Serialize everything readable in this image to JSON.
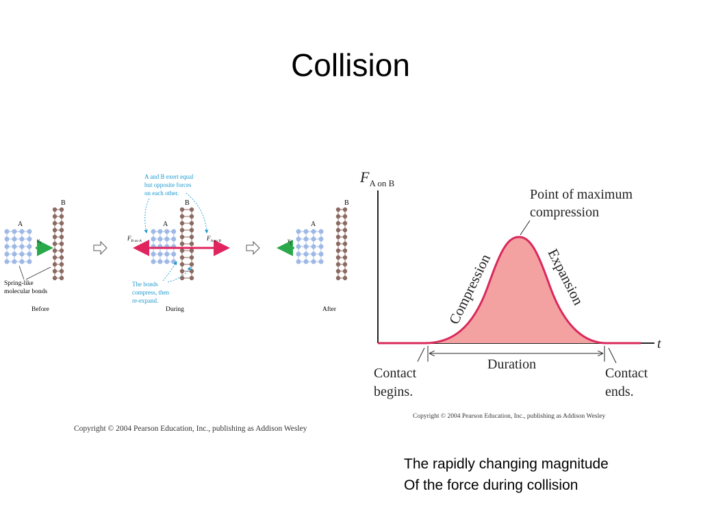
{
  "slide": {
    "title": "Collision",
    "caption_line1": "The rapidly changing magnitude",
    "caption_line2": "Of the force during collision"
  },
  "left_figure": {
    "label_a_before": "A",
    "label_b_before": "B",
    "velocity_before": "v",
    "velocity_before_sub": "i",
    "springs_line1": "Spring-like",
    "springs_line2": "molecular bonds",
    "stage_before": "Before",
    "note_top_line1": "A and B exert equal",
    "note_top_line2": "but opposite forces",
    "note_top_line3": "on each other.",
    "label_a_during": "A",
    "label_b_during": "B",
    "force_left": "F",
    "force_left_sub": "B on A",
    "force_right": "F",
    "force_right_sub": "A on B",
    "note_bottom_line1": "The bonds",
    "note_bottom_line2": "compress, then",
    "note_bottom_line3": "re-expand.",
    "stage_during": "During",
    "label_a_after": "A",
    "label_b_after": "B",
    "velocity_after": "v",
    "velocity_after_sub": "f",
    "stage_after": "After",
    "copyright": "Copyright © 2004 Pearson Education, Inc., publishing as Addison Wesley",
    "colors": {
      "atom_a": "#9fb9e6",
      "atom_b": "#8a6a62",
      "force": "#e0245e",
      "velocity": "#2aa84a",
      "note": "#1a9ad0"
    }
  },
  "right_figure": {
    "y_axis_label": "F",
    "y_axis_sub": "A on B",
    "x_axis_label": "t",
    "peak_label_line1": "Point of maximum",
    "peak_label_line2": "compression",
    "phase_rise": "Compression",
    "phase_fall": "Expansion",
    "duration_label": "Duration",
    "contact_begin_line1": "Contact",
    "contact_begin_line2": "begins.",
    "contact_end_line1": "Contact",
    "contact_end_line2": "ends.",
    "copyright": "Copyright © 2004 Pearson Education, Inc., publishing as Addison Wesley",
    "colors": {
      "curve": "#d9285a",
      "fill": "#f4a1a1",
      "axis": "#222222"
    }
  }
}
